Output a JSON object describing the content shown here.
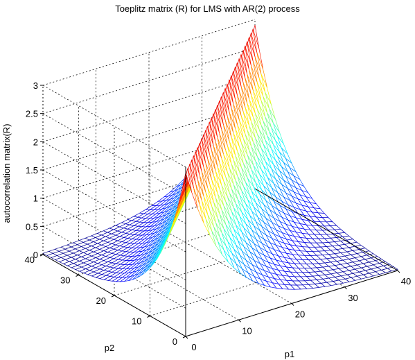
{
  "chart_data": {
    "type": "surface-mesh",
    "title": "Toeplitz matrix (R) for LMS with AR(2) process",
    "xlabel": "p1",
    "ylabel": "p2",
    "zlabel": "autocorrelation matrix(R)",
    "xlim": [
      0,
      40
    ],
    "ylim": [
      0,
      40
    ],
    "zlim": [
      0,
      3
    ],
    "x_ticks": [
      "0",
      "10",
      "20",
      "30",
      "40"
    ],
    "y_ticks": [
      "0",
      "10",
      "20",
      "30",
      "40"
    ],
    "z_ticks": [
      "0",
      "0.5",
      "1",
      "1.5",
      "2",
      "2.5",
      "3"
    ],
    "grid": true,
    "colormap": "jet",
    "grid_size": 35,
    "peak_value": 2.9,
    "decay_rate": 0.14,
    "oscillation": [
      0.2,
      0.05
    ],
    "surface_description": "R(i,j) = r(|i-j|): peak of about 2.9 along the diagonal p1 = p2, decaying on both sides toward 0"
  }
}
